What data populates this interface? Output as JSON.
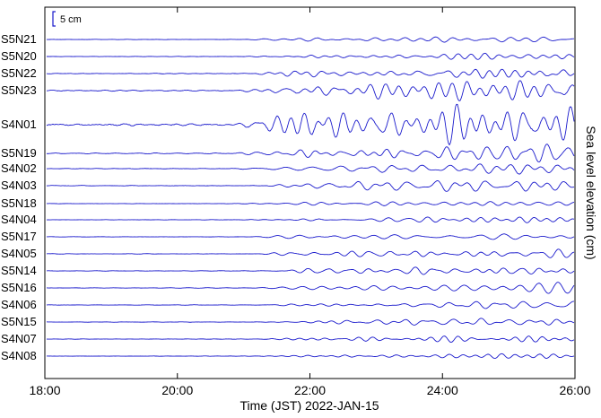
{
  "chart_data": {
    "type": "line",
    "title": "",
    "xlabel": "Time (JST)  2022-JAN-15",
    "ylabel": "Sea level elevation (cm)",
    "x_ticks": [
      {
        "value": 18,
        "label": "18:00"
      },
      {
        "value": 20,
        "label": "20:00"
      },
      {
        "value": 22,
        "label": "22:00"
      },
      {
        "value": 24,
        "label": "24:00"
      },
      {
        "value": 26,
        "label": "26:00"
      }
    ],
    "xlim": [
      18,
      26
    ],
    "scale_bar": {
      "label": "5 cm",
      "value_cm": 5
    },
    "line_color": "#1a1acc",
    "series": [
      {
        "name": "S5N21",
        "onset": 20.7,
        "amplitude": 0.9
      },
      {
        "name": "S5N20",
        "onset": 20.8,
        "amplitude": 0.8
      },
      {
        "name": "S5N22",
        "onset": 20.7,
        "amplitude": 1.4
      },
      {
        "name": "S5N23",
        "onset": 20.8,
        "amplitude": 2.6
      },
      {
        "name": "S4N01",
        "onset": 20.6,
        "amplitude": 5.0
      },
      {
        "name": "S5N19",
        "onset": 20.8,
        "amplitude": 1.8
      },
      {
        "name": "S4N02",
        "onset": 20.8,
        "amplitude": 1.6
      },
      {
        "name": "S4N03",
        "onset": 20.9,
        "amplitude": 1.5
      },
      {
        "name": "S5N18",
        "onset": 20.9,
        "amplitude": 0.9
      },
      {
        "name": "S4N04",
        "onset": 21.0,
        "amplitude": 0.9
      },
      {
        "name": "S5N17",
        "onset": 21.0,
        "amplitude": 1.0
      },
      {
        "name": "S4N05",
        "onset": 21.0,
        "amplitude": 1.0
      },
      {
        "name": "S5N14",
        "onset": 21.1,
        "amplitude": 1.0
      },
      {
        "name": "S5N16",
        "onset": 21.1,
        "amplitude": 1.0
      },
      {
        "name": "S4N06",
        "onset": 21.1,
        "amplitude": 1.0
      },
      {
        "name": "S5N15",
        "onset": 21.2,
        "amplitude": 0.9
      },
      {
        "name": "S4N07",
        "onset": 21.2,
        "amplitude": 0.9
      },
      {
        "name": "S4N08",
        "onset": 21.2,
        "amplitude": 0.9
      }
    ]
  }
}
